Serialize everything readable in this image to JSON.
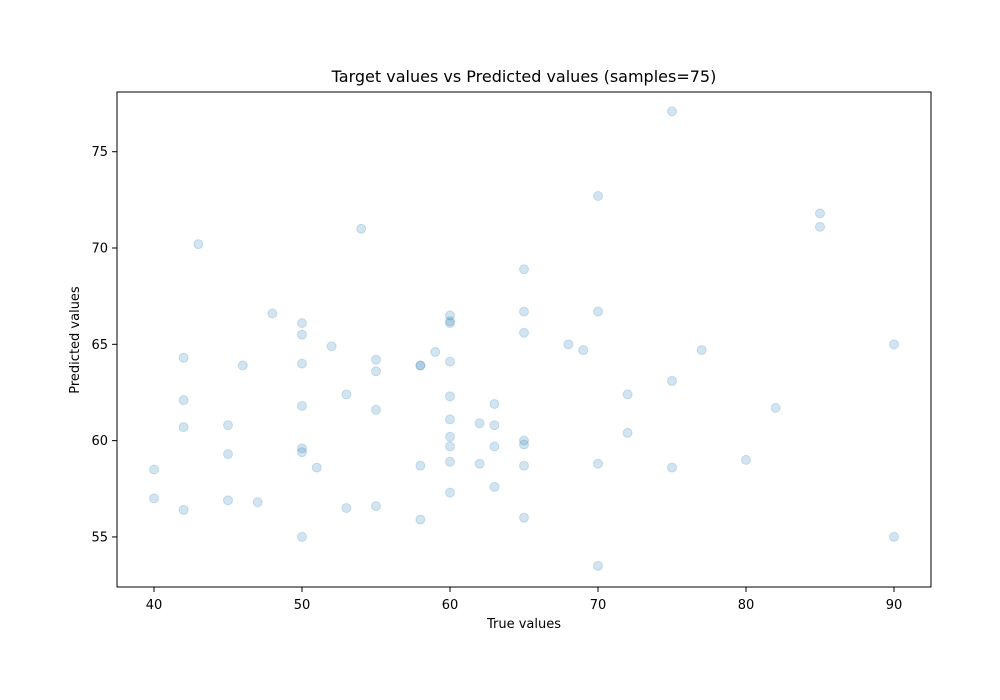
{
  "chart_data": {
    "type": "scatter",
    "title": "Target values vs Predicted values (samples=75)",
    "xlabel": "True values",
    "ylabel": "Predicted values",
    "xlim": [
      37.5,
      92.5
    ],
    "ylim": [
      52.4,
      78.1
    ],
    "xticks": [
      40,
      50,
      60,
      70,
      80,
      90
    ],
    "yticks": [
      55,
      60,
      65,
      70,
      75
    ],
    "grid": false,
    "point_color": "#1f77b4",
    "point_alpha": 0.2,
    "points": [
      [
        40,
        58.5
      ],
      [
        40,
        57.0
      ],
      [
        42,
        64.3
      ],
      [
        42,
        62.1
      ],
      [
        42,
        60.7
      ],
      [
        42,
        56.4
      ],
      [
        43,
        70.2
      ],
      [
        45,
        60.8
      ],
      [
        45,
        59.3
      ],
      [
        45,
        56.9
      ],
      [
        46,
        63.9
      ],
      [
        47,
        56.8
      ],
      [
        48,
        66.6
      ],
      [
        50,
        66.1
      ],
      [
        50,
        65.5
      ],
      [
        50,
        64.0
      ],
      [
        50,
        61.8
      ],
      [
        50,
        59.6
      ],
      [
        50,
        59.4
      ],
      [
        50,
        55.0
      ],
      [
        51,
        58.6
      ],
      [
        52,
        64.9
      ],
      [
        53,
        62.4
      ],
      [
        53,
        56.5
      ],
      [
        54,
        71.0
      ],
      [
        55,
        64.2
      ],
      [
        55,
        63.6
      ],
      [
        55,
        61.6
      ],
      [
        55,
        56.6
      ],
      [
        58,
        63.9
      ],
      [
        58,
        63.9
      ],
      [
        58,
        58.7
      ],
      [
        58,
        55.9
      ],
      [
        59,
        64.6
      ],
      [
        60,
        66.5
      ],
      [
        60,
        66.2
      ],
      [
        60,
        66.1
      ],
      [
        60,
        64.1
      ],
      [
        60,
        62.3
      ],
      [
        60,
        61.1
      ],
      [
        60,
        60.2
      ],
      [
        60,
        59.7
      ],
      [
        60,
        58.9
      ],
      [
        60,
        57.3
      ],
      [
        62,
        60.9
      ],
      [
        62,
        58.8
      ],
      [
        63,
        61.9
      ],
      [
        63,
        60.8
      ],
      [
        63,
        59.7
      ],
      [
        63,
        57.6
      ],
      [
        65,
        68.9
      ],
      [
        65,
        66.7
      ],
      [
        65,
        65.6
      ],
      [
        65,
        60.0
      ],
      [
        65,
        59.8
      ],
      [
        65,
        58.7
      ],
      [
        65,
        56.0
      ],
      [
        68,
        65.0
      ],
      [
        69,
        64.7
      ],
      [
        70,
        72.7
      ],
      [
        70,
        66.7
      ],
      [
        70,
        58.8
      ],
      [
        70,
        53.5
      ],
      [
        72,
        62.4
      ],
      [
        72,
        60.4
      ],
      [
        75,
        77.1
      ],
      [
        75,
        63.1
      ],
      [
        75,
        58.6
      ],
      [
        77,
        64.7
      ],
      [
        80,
        59.0
      ],
      [
        82,
        61.7
      ],
      [
        85,
        71.8
      ],
      [
        85,
        71.1
      ],
      [
        90,
        65.0
      ],
      [
        90,
        55.0
      ]
    ]
  }
}
